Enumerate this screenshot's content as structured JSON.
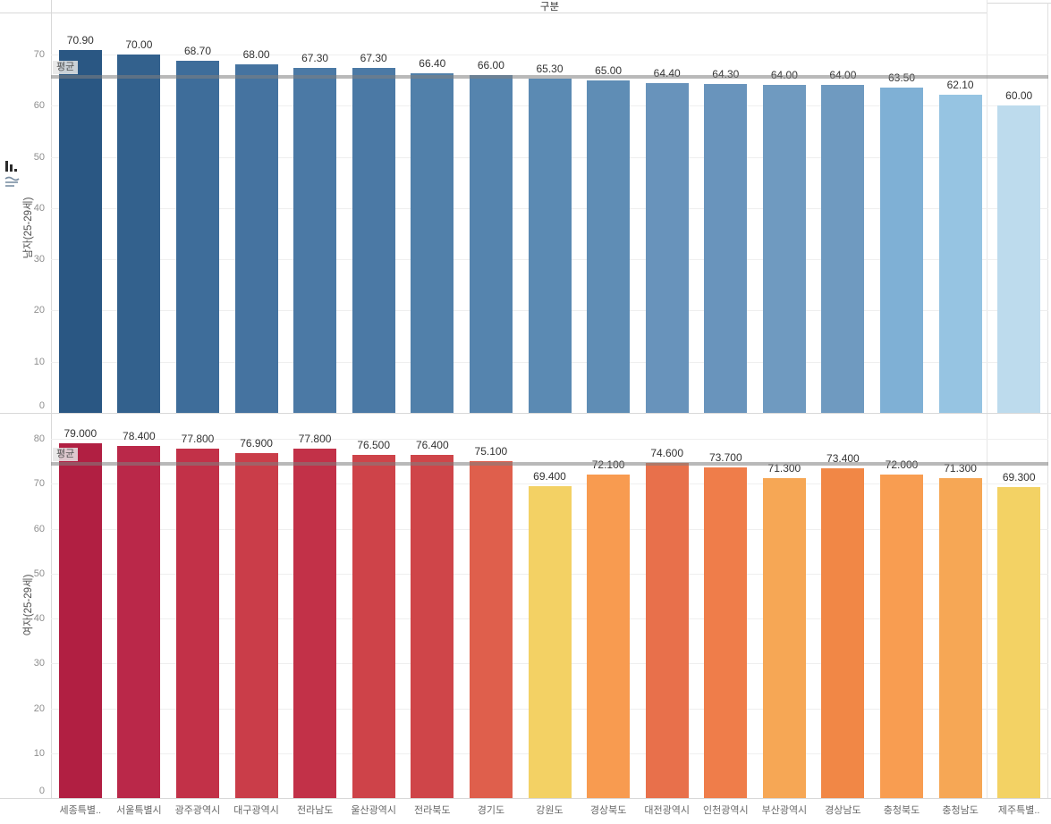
{
  "header": {
    "title": "구분"
  },
  "reference": {
    "label": "평균",
    "line_color": "#808080"
  },
  "icons": [
    {
      "name": "sort-descending-icon"
    },
    {
      "name": "axis-sort-icon"
    }
  ],
  "chart_data": [
    {
      "type": "bar",
      "pane": "male",
      "title": "남자(25-29세)",
      "ylabel": "남자(25-29세)",
      "categories": [
        "세종특별..",
        "서울특별시",
        "광주광역시",
        "대구광역시",
        "전라남도",
        "울산광역시",
        "전라북도",
        "경기도",
        "강원도",
        "경상북도",
        "대전광역시",
        "인천광역시",
        "부산광역시",
        "경상남도",
        "충청북도",
        "충청남도",
        "제주특별.."
      ],
      "values": [
        70.9,
        70.0,
        68.7,
        68.0,
        67.3,
        67.3,
        66.4,
        66.0,
        65.3,
        65.0,
        64.4,
        64.3,
        64.0,
        64.0,
        63.5,
        62.1,
        60.0
      ],
      "value_labels": [
        "70.90",
        "70.00",
        "68.70",
        "68.00",
        "67.30",
        "67.30",
        "66.40",
        "66.00",
        "65.30",
        "65.00",
        "64.40",
        "64.30",
        "64.00",
        "64.00",
        "63.50",
        "62.10",
        "60.00"
      ],
      "bar_colors": [
        "#2a5783",
        "#33618d",
        "#3e6d9a",
        "#4573a0",
        "#4b79a5",
        "#4b79a5",
        "#5180aa",
        "#5584ae",
        "#5b8ab3",
        "#5f8db5",
        "#6893bb",
        "#6994bc",
        "#6f9ac0",
        "#6f9ac0",
        "#7fb0d5",
        "#96c4e2",
        "#bddbed"
      ],
      "yticks": [
        0,
        10,
        20,
        30,
        40,
        50,
        60,
        70
      ],
      "ylim": [
        0,
        78.2
      ],
      "grid": true,
      "legend": "none",
      "average": 65.72,
      "show_x_labels": false
    },
    {
      "type": "bar",
      "pane": "female",
      "title": "여자(25-29세)",
      "ylabel": "여자(25-29세)",
      "categories": [
        "세종특별..",
        "서울특별시",
        "광주광역시",
        "대구광역시",
        "전라남도",
        "울산광역시",
        "전라북도",
        "경기도",
        "강원도",
        "경상북도",
        "대전광역시",
        "인천광역시",
        "부산광역시",
        "경상남도",
        "충청북도",
        "충청남도",
        "제주특별.."
      ],
      "values": [
        79.0,
        78.4,
        77.8,
        76.9,
        77.8,
        76.5,
        76.4,
        75.1,
        69.4,
        72.1,
        74.6,
        73.7,
        71.3,
        73.4,
        72.0,
        71.3,
        69.3
      ],
      "value_labels": [
        "79.000",
        "78.400",
        "77.800",
        "76.900",
        "77.800",
        "76.500",
        "76.400",
        "75.100",
        "69.400",
        "72.100",
        "74.600",
        "73.700",
        "71.300",
        "73.400",
        "72.000",
        "71.300",
        "69.300"
      ],
      "bar_colors": [
        "#b11f42",
        "#ba2849",
        "#c23148",
        "#ca3d49",
        "#c23148",
        "#ce4349",
        "#cf4549",
        "#df5f4c",
        "#f3d164",
        "#f89b50",
        "#e8704b",
        "#ef7d4a",
        "#f6a755",
        "#f18746",
        "#f89d51",
        "#f6a755",
        "#f3d264"
      ],
      "yticks": [
        0,
        10,
        20,
        30,
        40,
        50,
        60,
        70,
        80
      ],
      "ylim": [
        0,
        85.8
      ],
      "grid": true,
      "legend": "none",
      "average": 74.41,
      "show_x_labels": true
    }
  ]
}
